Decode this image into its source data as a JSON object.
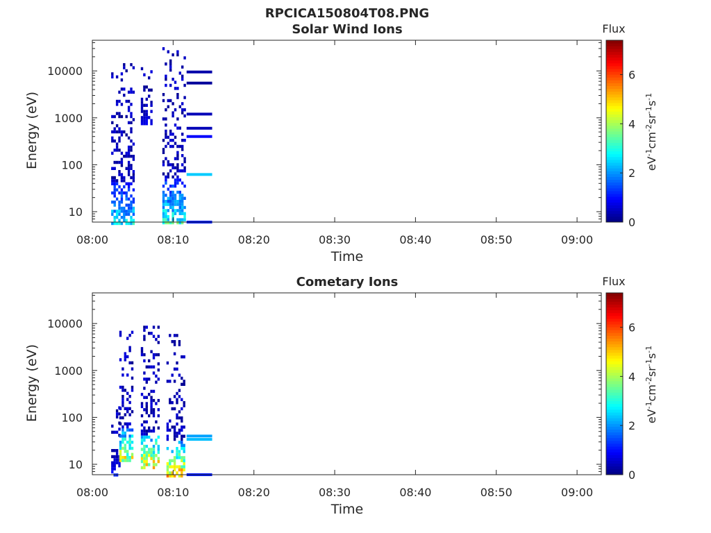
{
  "figure_title": "RPCICA150804T08.PNG",
  "chart_data": [
    {
      "type": "heatmap",
      "title": "Solar Wind Ions",
      "xlabel": "Time",
      "ylabel": "Energy (eV)",
      "yscale": "log",
      "xlim": [
        "08:00",
        "09:03"
      ],
      "ylim": [
        6,
        45000
      ],
      "xticks": [
        "08:00",
        "08:10",
        "08:20",
        "08:30",
        "08:40",
        "08:50",
        "09:00"
      ],
      "yticks": [
        10,
        100,
        1000,
        10000
      ],
      "ytick_labels": [
        "10",
        "100",
        "1000",
        "10000"
      ],
      "colorbar": {
        "title": "Flux",
        "label": "eV-1cm-2sr-1s-1",
        "range": [
          0,
          7.4
        ],
        "ticks": [
          0,
          2,
          4,
          6
        ]
      },
      "bursts": [
        {
          "t_start": "08:02:20",
          "t_end": "08:05:10",
          "e_min": 6,
          "e_max": 17000,
          "peak": 3.2
        },
        {
          "t_start": "08:06:00",
          "t_end": "08:07:20",
          "e_min": 700,
          "e_max": 12000,
          "peak": 1.0
        },
        {
          "t_start": "08:08:40",
          "t_end": "08:11:20",
          "e_min": 6,
          "e_max": 32000,
          "peak": 3.8
        }
      ],
      "lines": [
        {
          "t_start": "08:11:40",
          "t_end": "08:14:50",
          "energy": 9500,
          "value": 0.3
        },
        {
          "t_start": "08:11:40",
          "t_end": "08:14:50",
          "energy": 5500,
          "value": 0.2
        },
        {
          "t_start": "08:11:40",
          "t_end": "08:14:50",
          "energy": 1200,
          "value": 0.4
        },
        {
          "t_start": "08:11:40",
          "t_end": "08:14:50",
          "energy": 600,
          "value": 0.4
        },
        {
          "t_start": "08:11:40",
          "t_end": "08:14:50",
          "energy": 400,
          "value": 0.9
        },
        {
          "t_start": "08:11:40",
          "t_end": "08:14:50",
          "energy": 62,
          "value": 2.4
        },
        {
          "t_start": "08:11:40",
          "t_end": "08:14:50",
          "energy": 6,
          "value": 1.1
        }
      ]
    },
    {
      "type": "heatmap",
      "title": "Cometary Ions",
      "xlabel": "Time",
      "ylabel": "Energy (eV)",
      "yscale": "log",
      "xlim": [
        "08:00",
        "09:03"
      ],
      "ylim": [
        6,
        45000
      ],
      "xticks": [
        "08:00",
        "08:10",
        "08:20",
        "08:30",
        "08:40",
        "08:50",
        "09:00"
      ],
      "yticks": [
        10,
        100,
        1000,
        10000
      ],
      "ytick_labels": [
        "10",
        "100",
        "1000",
        "10000"
      ],
      "colorbar": {
        "title": "Flux",
        "label": "eV-1cm-2sr-1s-1",
        "range": [
          0,
          7.4
        ],
        "ticks": [
          0,
          2,
          4,
          6
        ]
      },
      "bursts": [
        {
          "t_start": "08:02:20",
          "t_end": "08:03:20",
          "e_min": 6,
          "e_max": 200,
          "peak": 1.2
        },
        {
          "t_start": "08:03:20",
          "t_end": "08:05:00",
          "e_min": 12,
          "e_max": 11000,
          "peak": 5.8
        },
        {
          "t_start": "08:06:00",
          "t_end": "08:08:20",
          "e_min": 8,
          "e_max": 9000,
          "peak": 6.8
        },
        {
          "t_start": "08:09:10",
          "t_end": "08:11:20",
          "e_min": 6,
          "e_max": 6000,
          "peak": 6.3
        }
      ],
      "lines": [
        {
          "t_start": "08:11:40",
          "t_end": "08:14:50",
          "energy": 40,
          "value": 2.1
        },
        {
          "t_start": "08:11:40",
          "t_end": "08:14:50",
          "energy": 34,
          "value": 2.3
        },
        {
          "t_start": "08:11:40",
          "t_end": "08:14:50",
          "energy": 6,
          "value": 1.1
        }
      ]
    }
  ]
}
